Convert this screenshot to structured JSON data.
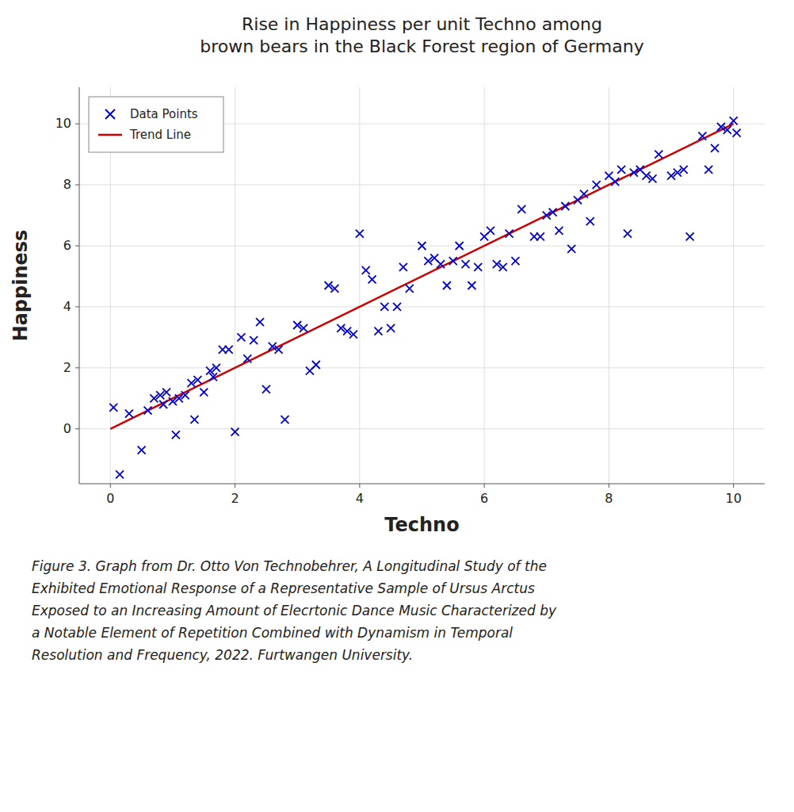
{
  "chart_data": {
    "type": "scatter",
    "title": "Rise in Happiness per unit Techno among\nbrown bears in the Black Forest region of Germany",
    "x_label": "Techno",
    "y_label": "Happiness",
    "caption": "Figure 3. Graph from Dr. Otto Von Technobehrer, A Longitudinal Study of the\nExhibited Emotional Response of a Representative Sample of Ursus Arctus\nExposed to an Increasing Amount of Elecrtonic Dance Music Characterized by\na Notable Element of Repetition Combined with Dynamism in Temporal\nResolution and Frequency, 2022. Furtwangen University.",
    "xlim": [
      -0.5,
      10.5
    ],
    "ylim": [
      -1.8,
      11.2
    ],
    "xticks": [
      0,
      2,
      4,
      6,
      8,
      10
    ],
    "yticks": [
      0,
      2,
      4,
      6,
      8,
      10
    ],
    "grid": true,
    "legend": "upper left",
    "series": [
      {
        "name": "Data Points",
        "type": "scatter",
        "marker": "x",
        "color": "#0000CC",
        "x": [
          0.05,
          0.15,
          0.3,
          0.5,
          0.6,
          0.7,
          0.8,
          0.85,
          0.9,
          1.0,
          1.05,
          1.1,
          1.2,
          1.3,
          1.35,
          1.4,
          1.5,
          1.6,
          1.65,
          1.7,
          1.8,
          1.9,
          2.0,
          2.1,
          2.2,
          2.3,
          2.4,
          2.5,
          2.6,
          2.7,
          2.8,
          3.0,
          3.1,
          3.2,
          3.3,
          3.5,
          3.6,
          3.7,
          3.8,
          3.9,
          4.0,
          4.1,
          4.2,
          4.3,
          4.4,
          4.5,
          4.6,
          4.7,
          4.8,
          5.0,
          5.1,
          5.2,
          5.3,
          5.4,
          5.5,
          5.6,
          5.7,
          5.8,
          5.9,
          6.0,
          6.1,
          6.2,
          6.3,
          6.4,
          6.5,
          6.6,
          6.8,
          6.9,
          7.0,
          7.1,
          7.2,
          7.3,
          7.4,
          7.5,
          7.6,
          7.7,
          7.8,
          8.0,
          8.1,
          8.2,
          8.3,
          8.4,
          8.5,
          8.6,
          8.7,
          8.8,
          9.0,
          9.1,
          9.2,
          9.3,
          9.5,
          9.6,
          9.7,
          9.8,
          9.9,
          10.0,
          10.05
        ],
        "values": [
          0.7,
          -1.5,
          0.5,
          -0.7,
          0.6,
          1.0,
          1.1,
          0.8,
          1.2,
          0.9,
          -0.2,
          1.0,
          1.1,
          1.5,
          0.3,
          1.6,
          1.2,
          1.9,
          1.7,
          2.0,
          2.6,
          2.6,
          -0.1,
          3.0,
          2.3,
          2.9,
          3.5,
          1.3,
          2.7,
          2.6,
          0.3,
          3.4,
          3.3,
          1.9,
          2.1,
          4.7,
          4.6,
          3.3,
          3.2,
          3.1,
          6.4,
          5.2,
          4.9,
          3.2,
          4.0,
          3.3,
          4.0,
          5.3,
          4.6,
          6.0,
          5.5,
          5.6,
          5.4,
          4.7,
          5.5,
          6.0,
          5.4,
          4.7,
          5.3,
          6.3,
          6.5,
          5.4,
          5.3,
          6.4,
          5.5,
          7.2,
          6.3,
          6.3,
          7.0,
          7.1,
          6.5,
          7.3,
          5.9,
          7.5,
          7.7,
          6.8,
          8.0,
          8.3,
          8.1,
          8.5,
          6.4,
          8.4,
          8.5,
          8.3,
          8.2,
          9.0,
          8.3,
          8.4,
          8.5,
          6.3,
          9.6,
          8.5,
          9.2,
          9.9,
          9.8,
          10.1,
          9.7
        ]
      },
      {
        "name": "Trend Line",
        "type": "line",
        "line_style": "solid",
        "color": "#CC0000",
        "x": [
          0,
          10
        ],
        "values": [
          0,
          10
        ]
      }
    ]
  }
}
